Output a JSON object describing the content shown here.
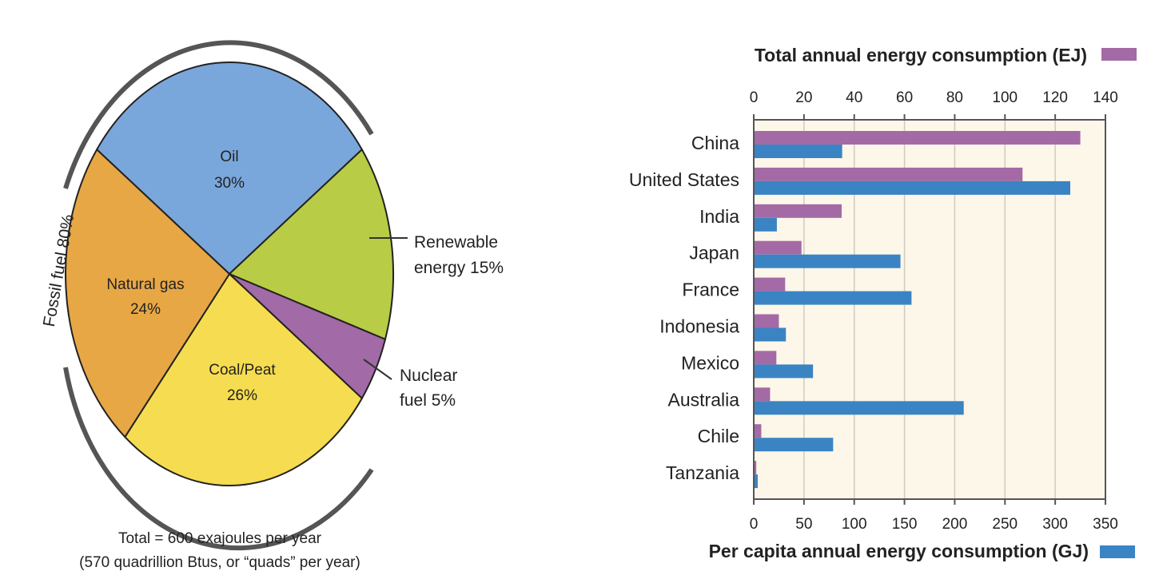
{
  "chart_data": [
    {
      "type": "pie",
      "slices": [
        {
          "label": "Oil",
          "value": 30,
          "text": "30%",
          "color": "#7aa7db"
        },
        {
          "label": "Renewable energy",
          "value": 15,
          "text": "15%",
          "color": "#b9cc45"
        },
        {
          "label": "Nuclear fuel",
          "value": 5,
          "text": "5%",
          "color": "#a26aa6"
        },
        {
          "label": "Coal/Peat",
          "value": 26,
          "text": "26%",
          "color": "#f6dc50"
        },
        {
          "label": "Natural gas",
          "value": 24,
          "text": "24%",
          "color": "#e8a745"
        }
      ],
      "labels": {
        "oil": [
          "Oil",
          "30%"
        ],
        "renewable": [
          "Renewable",
          "energy 15%"
        ],
        "nuclear": [
          "Nuclear",
          "fuel 5%"
        ],
        "coal": [
          "Coal/Peat",
          "26%"
        ],
        "gas": [
          "Natural gas",
          "24%"
        ]
      },
      "bracket_label": "Fossil fuel 80%",
      "caption": [
        "Total = 600 exajoules per year",
        "(570 quadrillion Btus, or “quads” per year)"
      ]
    },
    {
      "type": "bar",
      "orientation": "horizontal",
      "categories": [
        "China",
        "United States",
        "India",
        "Japan",
        "France",
        "Indonesia",
        "Mexico",
        "Australia",
        "Chile",
        "Tanzania"
      ],
      "series": [
        {
          "name": "Total annual energy consumption (EJ)",
          "axis": "top",
          "color": "#a46aa6",
          "values": [
            130,
            107,
            35,
            19,
            12.5,
            10,
            9,
            6.5,
            3,
            1
          ]
        },
        {
          "name": "Per capita annual energy consumption (GJ)",
          "axis": "bottom",
          "color": "#3a84c4",
          "values": [
            88,
            315,
            23,
            146,
            157,
            32,
            59,
            209,
            79,
            4
          ]
        }
      ],
      "top_axis": {
        "range": [
          0,
          140
        ],
        "ticks": [
          "0",
          "20",
          "40",
          "60",
          "80",
          "100",
          "120",
          "140"
        ]
      },
      "bottom_axis": {
        "range": [
          0,
          350
        ],
        "ticks": [
          "0",
          "50",
          "100",
          "150",
          "200",
          "250",
          "300",
          "350"
        ]
      },
      "grid": true,
      "plot_background": "#fdf7e9",
      "legend_placement": "titles"
    }
  ]
}
